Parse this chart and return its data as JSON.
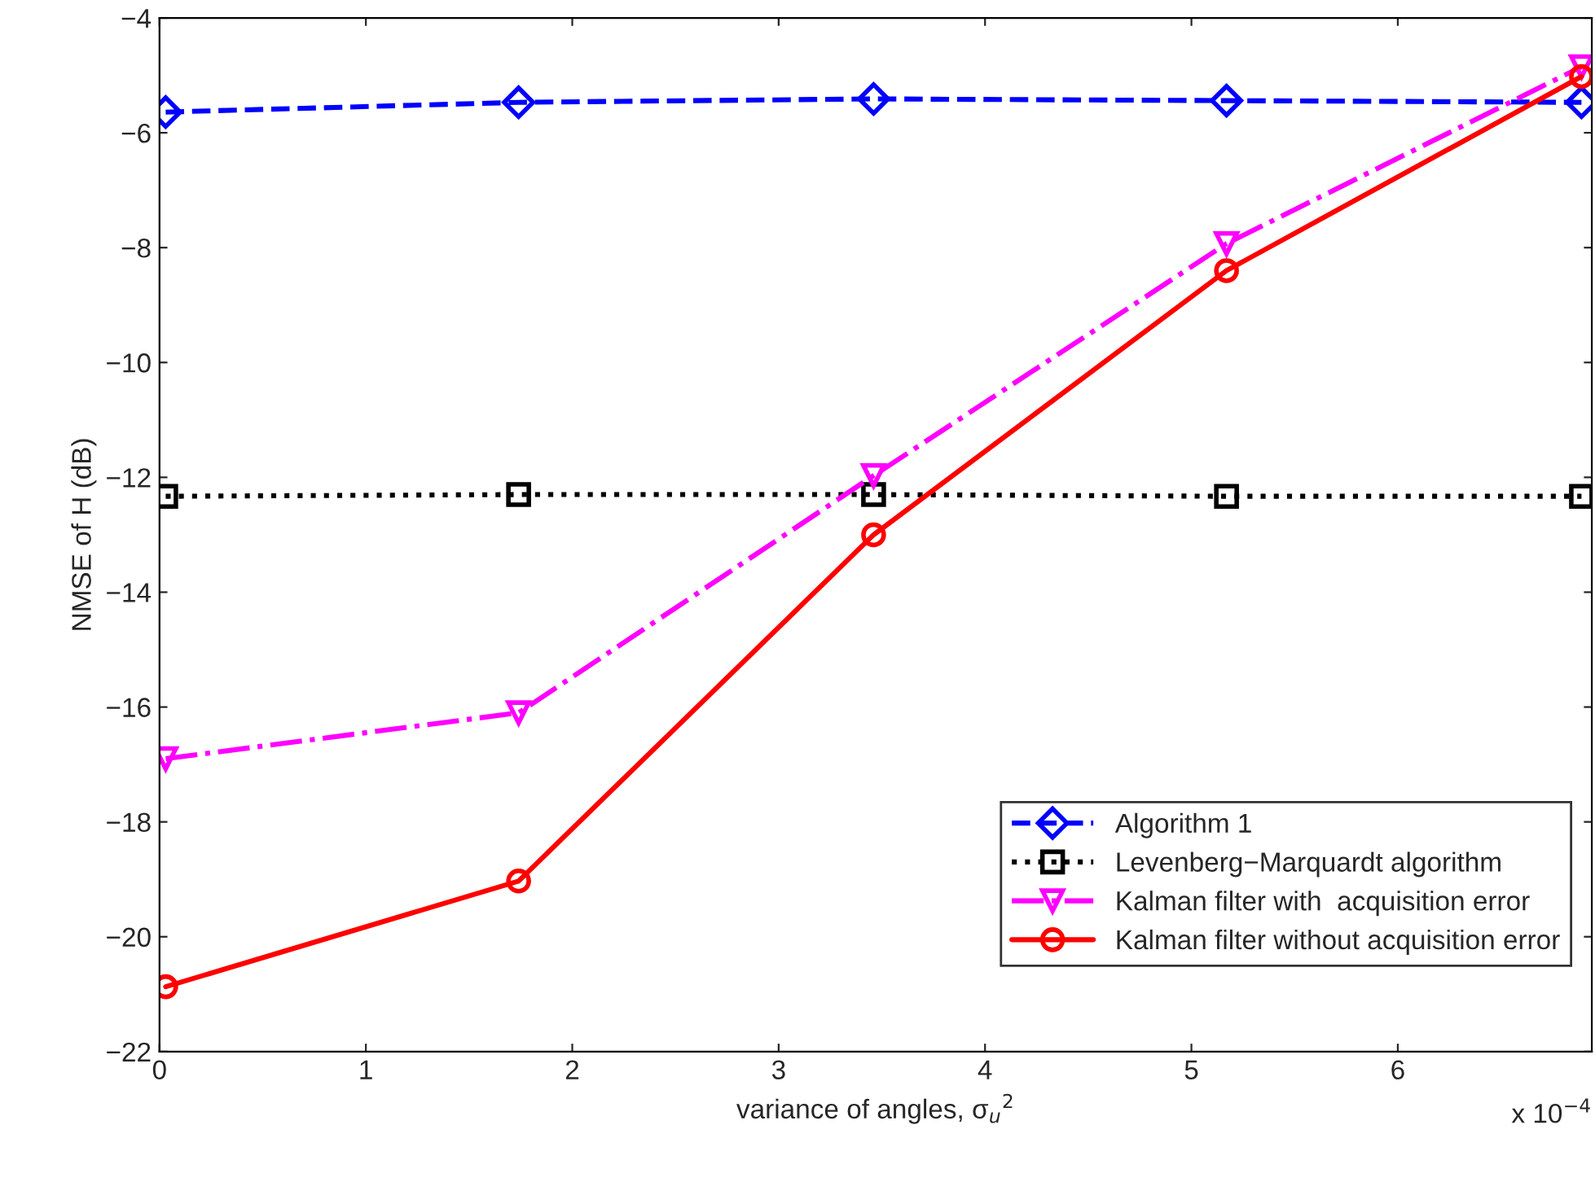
{
  "chart_data": {
    "type": "line",
    "xlabel": "variance of angles, σ$_{u}$$^{2}$",
    "ylabel": "NMSE of H (dB)",
    "annotations": [
      "x 10$^{−4}$"
    ],
    "x": [
      0.03,
      1.74,
      3.46,
      5.17,
      6.89
    ],
    "xlim": [
      0,
      6.94
    ],
    "xticks": [
      0,
      1,
      2,
      3,
      4,
      5,
      6
    ],
    "ylim": [
      -22,
      -4
    ],
    "yticks": [
      -22,
      -20,
      -18,
      -16,
      -14,
      -12,
      -10,
      -8,
      -6,
      -4
    ],
    "grid": false,
    "legend": "bottom right",
    "series": [
      {
        "name": "Algorithm 1",
        "color": "#0000ff",
        "marker": "diamond",
        "line_style": "dashed",
        "values": [
          -5.64,
          -5.47,
          -5.41,
          -5.44,
          -5.47
        ]
      },
      {
        "name": "Levenberg−Marquardt algorithm",
        "color": "#000000",
        "marker": "square",
        "line_style": "dotted",
        "values": [
          -12.33,
          -12.3,
          -12.3,
          -12.33,
          -12.33
        ]
      },
      {
        "name": "Kalman filter with  acquisition error",
        "color": "#ff00ff",
        "marker": "triangle",
        "line_style": "dashdot",
        "values": [
          -16.9,
          -16.1,
          -11.97,
          -7.93,
          -4.85
        ]
      },
      {
        "name": "Kalman filter without acquisition error",
        "color": "#ff0000",
        "marker": "circle",
        "line_style": "solid",
        "values": [
          -20.87,
          -19.03,
          -13.0,
          -8.4,
          -5.02
        ]
      }
    ]
  }
}
